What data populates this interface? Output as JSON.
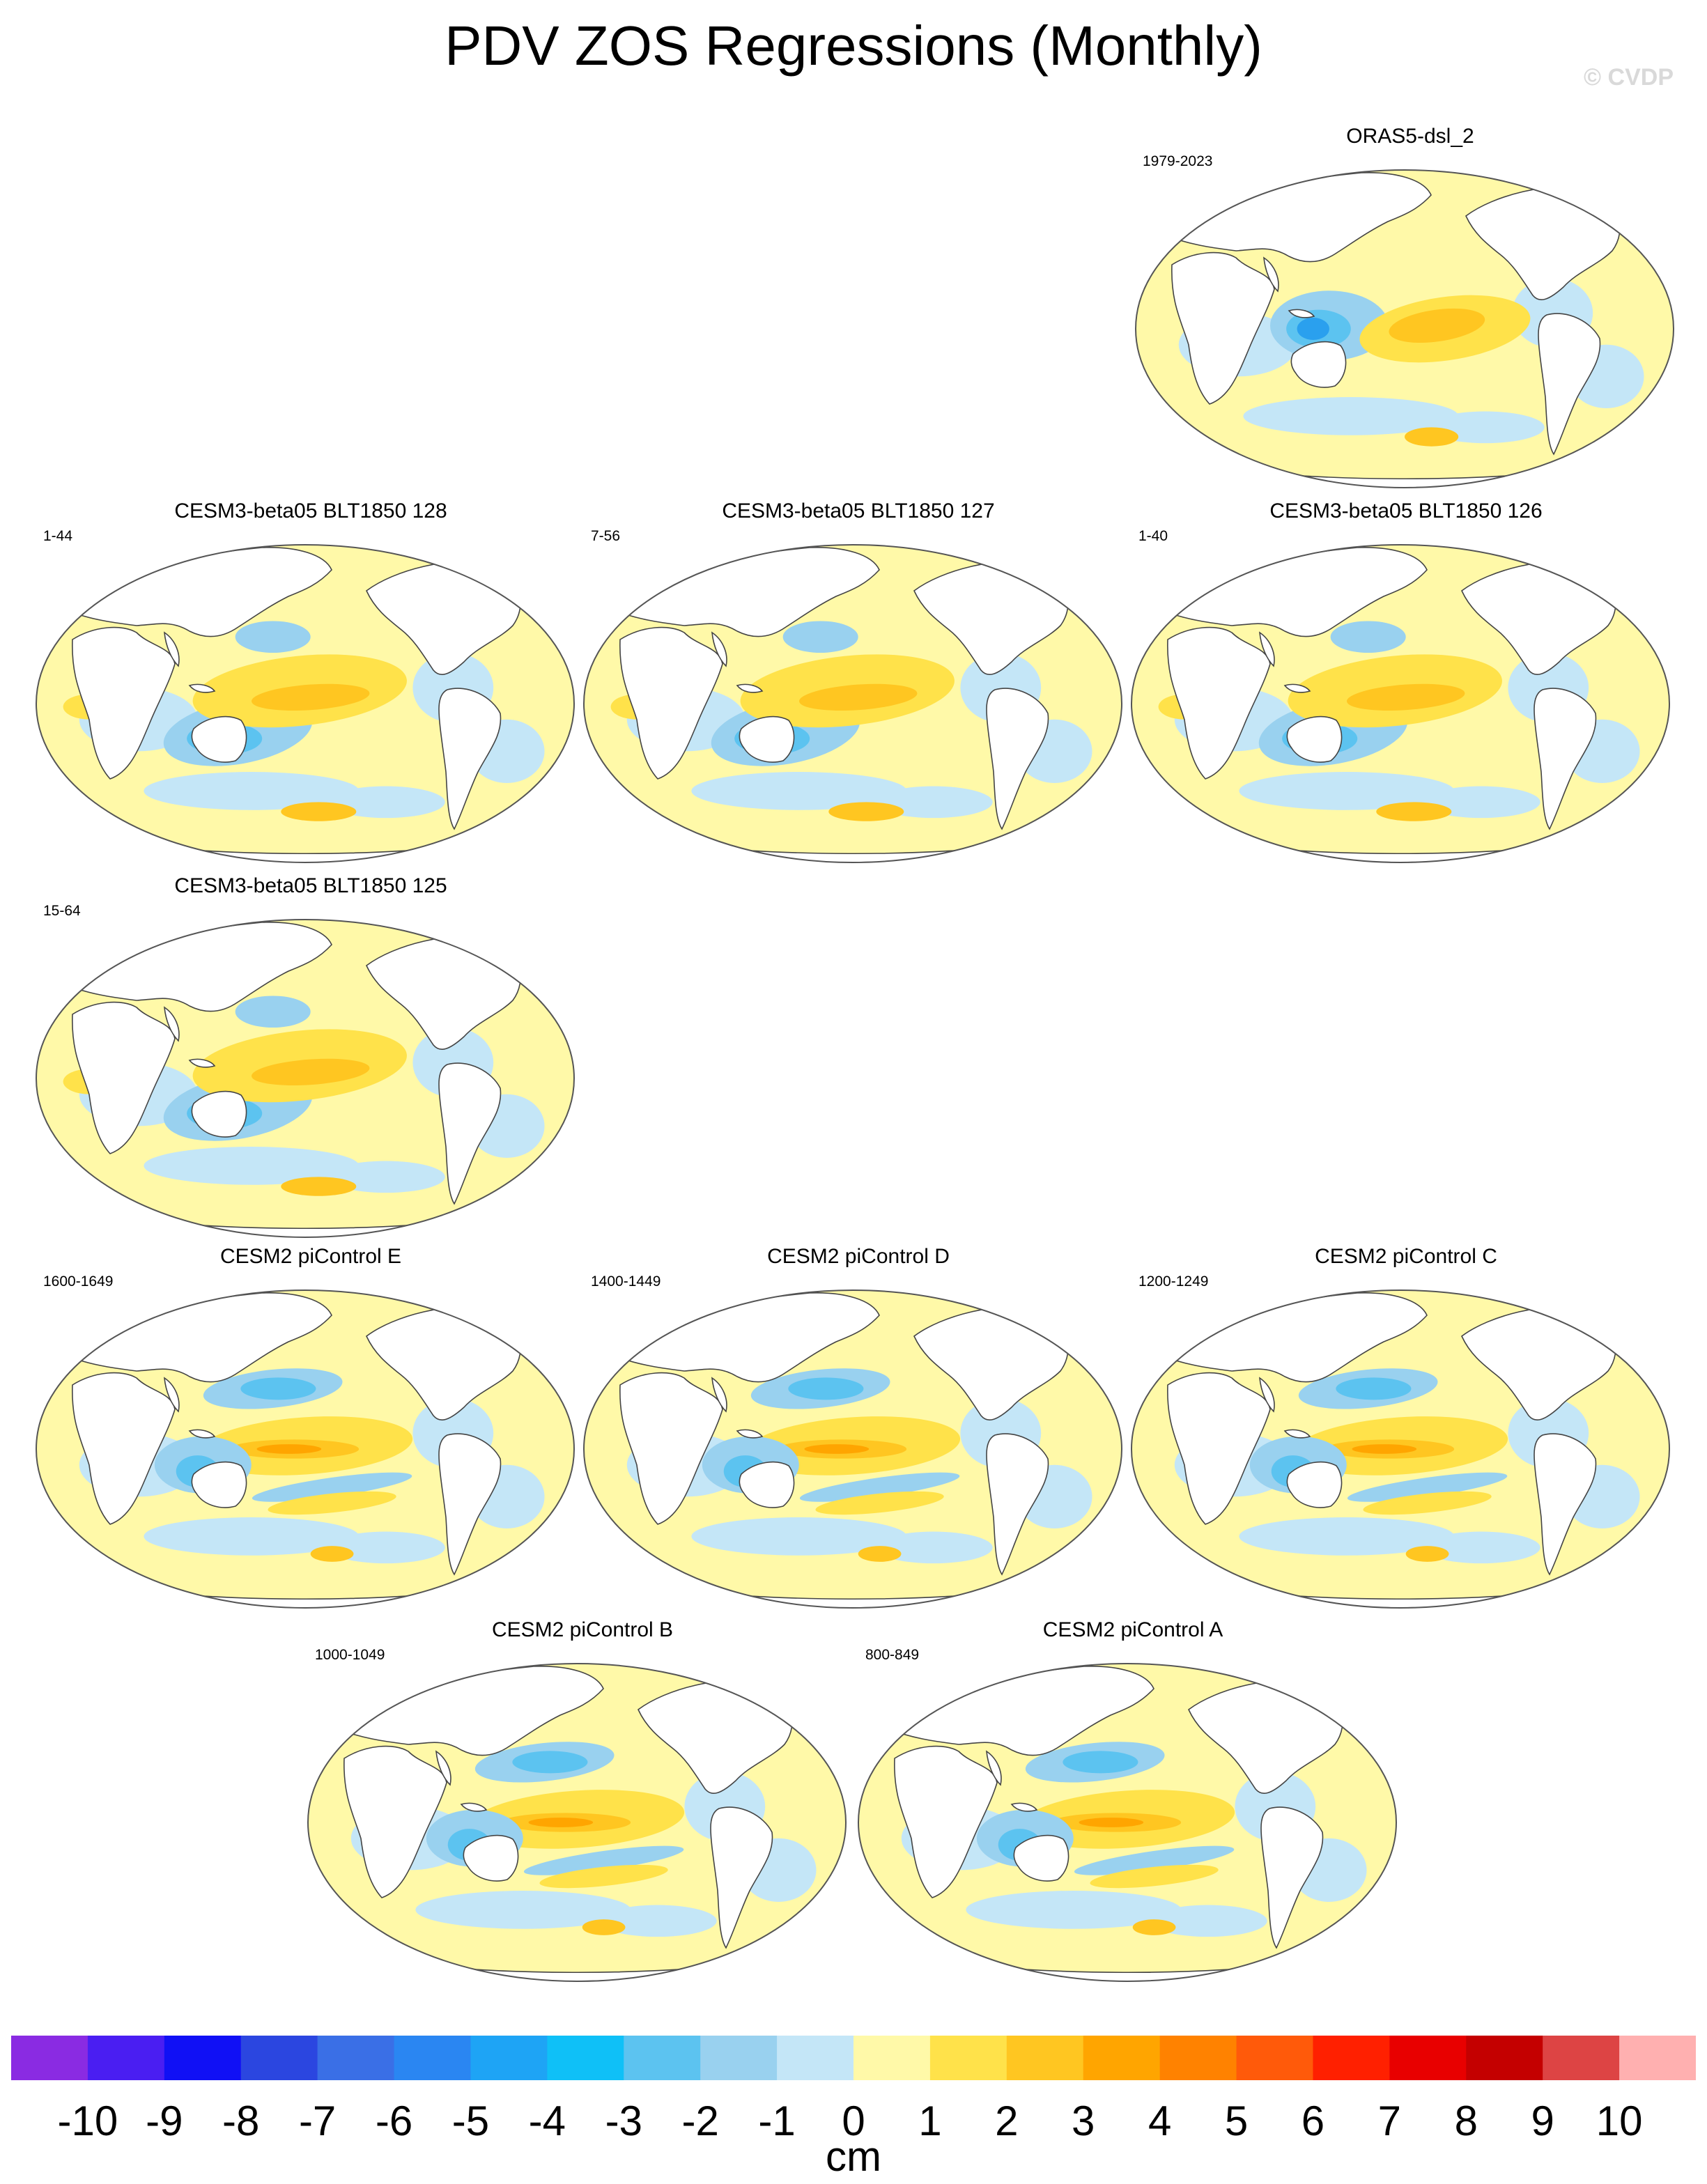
{
  "title": "PDV ZOS Regressions (Monthly)",
  "watermark": "© CVDP",
  "chart_data": {
    "type": "heatmap",
    "description_variable": "ZOS regression onto PDV index",
    "projection": "robinson-like global maps",
    "panels": [
      {
        "title": "ORAS5-dsl_2",
        "years": "1979-2023",
        "pattern": "obs"
      },
      {
        "title": "CESM3-beta05 BLT1850 128",
        "years": "1-44",
        "pattern": "cesm3"
      },
      {
        "title": "CESM3-beta05 BLT1850 127",
        "years": "7-56",
        "pattern": "cesm3"
      },
      {
        "title": "CESM3-beta05 BLT1850 126",
        "years": "1-40",
        "pattern": "cesm3"
      },
      {
        "title": "CESM3-beta05 BLT1850 125",
        "years": "15-64",
        "pattern": "cesm3"
      },
      {
        "title": "CESM2 piControl E",
        "years": "1600-1649",
        "pattern": "cesm2"
      },
      {
        "title": "CESM2 piControl D",
        "years": "1400-1449",
        "pattern": "cesm2"
      },
      {
        "title": "CESM2 piControl C",
        "years": "1200-1249",
        "pattern": "cesm2"
      },
      {
        "title": "CESM2 piControl B",
        "years": "1000-1049",
        "pattern": "cesm2"
      },
      {
        "title": "CESM2 piControl A",
        "years": "800-849",
        "pattern": "cesm2"
      }
    ],
    "colorbar": {
      "unit": "cm",
      "ticks": [
        "-10",
        "-9",
        "-8",
        "-7",
        "-6",
        "-5",
        "-4",
        "-3",
        "-2",
        "-1",
        "0",
        "1",
        "2",
        "3",
        "4",
        "5",
        "6",
        "7",
        "8",
        "9",
        "10"
      ],
      "colors": [
        "#8a2be2",
        "#4a1ef2",
        "#1010f5",
        "#2b46e0",
        "#3a6fe6",
        "#2a86f2",
        "#1ea4f5",
        "#0fc0f7",
        "#5cc3f0",
        "#99d1ef",
        "#c4e6f7",
        "#fff9a8",
        "#ffe24a",
        "#ffc621",
        "#ffa500",
        "#ff8200",
        "#ff5a0a",
        "#ff2000",
        "#e80000",
        "#c40000",
        "#dd4444",
        "#ffb0b0"
      ]
    }
  }
}
